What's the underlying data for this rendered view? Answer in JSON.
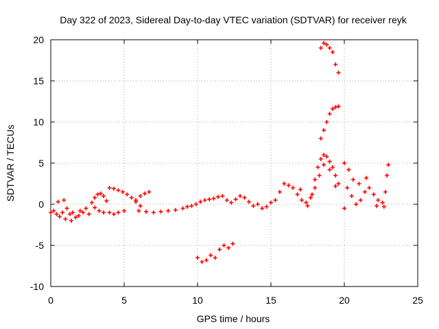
{
  "chart_data": {
    "type": "scatter",
    "title": "Day 322 of 2023, Sidereal Day-to-day VTEC variation (SDTVAR) for receiver reyk",
    "xlabel": "GPS time / hours",
    "ylabel": "SDTVAR / TECUs",
    "xlim": [
      0,
      25
    ],
    "ylim": [
      -10,
      20
    ],
    "xticks": [
      0,
      5,
      10,
      15,
      20,
      25
    ],
    "xtick_labels": [
      "0",
      "5",
      "10",
      "15",
      "20",
      "25"
    ],
    "yticks": [
      -10,
      -5,
      0,
      5,
      10,
      15,
      20
    ],
    "ytick_labels": [
      "-10",
      "-5",
      "0",
      "5",
      "10",
      "15",
      "20"
    ],
    "grid": true,
    "marker": "+",
    "series": [
      {
        "name": "SDTVAR",
        "color": "#ff0000",
        "points": [
          [
            0.0,
            -1.0
          ],
          [
            0.2,
            -0.8
          ],
          [
            0.4,
            -1.2
          ],
          [
            0.5,
            0.3
          ],
          [
            0.6,
            -1.5
          ],
          [
            0.8,
            -1.0
          ],
          [
            0.9,
            0.5
          ],
          [
            1.0,
            -1.8
          ],
          [
            1.1,
            -0.5
          ],
          [
            1.3,
            -1.2
          ],
          [
            1.4,
            -2.0
          ],
          [
            1.5,
            -1.0
          ],
          [
            1.7,
            -1.6
          ],
          [
            1.9,
            -1.4
          ],
          [
            2.0,
            -0.8
          ],
          [
            2.2,
            -1.0
          ],
          [
            2.4,
            -0.5
          ],
          [
            2.6,
            -1.2
          ],
          [
            2.8,
            0.2
          ],
          [
            3.0,
            0.8
          ],
          [
            3.2,
            1.2
          ],
          [
            3.4,
            1.3
          ],
          [
            3.6,
            1.0
          ],
          [
            3.8,
            0.4
          ],
          [
            3.0,
            -0.4
          ],
          [
            3.3,
            -0.8
          ],
          [
            3.6,
            -1.0
          ],
          [
            4.0,
            -1.0
          ],
          [
            4.3,
            -1.2
          ],
          [
            4.6,
            -1.0
          ],
          [
            5.0,
            -0.8
          ],
          [
            4.0,
            2.0
          ],
          [
            4.3,
            1.9
          ],
          [
            4.6,
            1.7
          ],
          [
            4.9,
            1.5
          ],
          [
            5.2,
            1.2
          ],
          [
            5.5,
            0.8
          ],
          [
            5.8,
            0.3
          ],
          [
            6.1,
            -0.2
          ],
          [
            5.8,
            0.5
          ],
          [
            6.1,
            1.0
          ],
          [
            6.4,
            1.3
          ],
          [
            6.7,
            1.5
          ],
          [
            6.0,
            -0.8
          ],
          [
            6.5,
            -0.9
          ],
          [
            7.0,
            -1.0
          ],
          [
            7.5,
            -0.9
          ],
          [
            8.0,
            -0.8
          ],
          [
            8.5,
            -0.7
          ],
          [
            9.0,
            -0.5
          ],
          [
            9.3,
            -0.3
          ],
          [
            9.6,
            -0.2
          ],
          [
            9.9,
            0.0
          ],
          [
            10.2,
            0.3
          ],
          [
            10.5,
            0.5
          ],
          [
            10.8,
            0.6
          ],
          [
            11.1,
            0.7
          ],
          [
            11.4,
            0.9
          ],
          [
            11.7,
            1.0
          ],
          [
            12.0,
            0.5
          ],
          [
            12.3,
            0.2
          ],
          [
            12.6,
            0.6
          ],
          [
            12.9,
            1.0
          ],
          [
            13.2,
            0.8
          ],
          [
            13.5,
            0.3
          ],
          [
            13.8,
            -0.2
          ],
          [
            14.1,
            0.0
          ],
          [
            14.4,
            -0.5
          ],
          [
            14.7,
            -0.3
          ],
          [
            15.0,
            0.2
          ],
          [
            15.3,
            0.5
          ],
          [
            15.6,
            1.5
          ],
          [
            15.9,
            2.5
          ],
          [
            16.2,
            2.3
          ],
          [
            16.5,
            2.0
          ],
          [
            16.8,
            1.2
          ],
          [
            17.1,
            0.5
          ],
          [
            17.4,
            0.2
          ],
          [
            17.7,
            0.8
          ],
          [
            17.5,
            -0.2
          ],
          [
            17.0,
            1.8
          ],
          [
            18.0,
            3.0
          ],
          [
            18.2,
            4.5
          ],
          [
            18.4,
            5.5
          ],
          [
            18.6,
            6.0
          ],
          [
            18.8,
            5.8
          ],
          [
            19.0,
            5.2
          ],
          [
            19.2,
            4.5
          ],
          [
            19.4,
            3.5
          ],
          [
            19.6,
            2.5
          ],
          [
            18.3,
            3.5
          ],
          [
            18.6,
            4.8
          ],
          [
            19.0,
            4.2
          ],
          [
            19.4,
            2.2
          ],
          [
            17.8,
            1.2
          ],
          [
            18.0,
            2.0
          ],
          [
            10.0,
            -6.5
          ],
          [
            10.3,
            -7.0
          ],
          [
            10.6,
            -6.8
          ],
          [
            10.9,
            -6.2
          ],
          [
            11.2,
            -6.5
          ],
          [
            11.5,
            -5.5
          ],
          [
            11.8,
            -5.0
          ],
          [
            12.1,
            -5.3
          ],
          [
            12.4,
            -4.8
          ],
          [
            18.4,
            19.0
          ],
          [
            18.6,
            19.6
          ],
          [
            18.8,
            19.4
          ],
          [
            19.0,
            19.0
          ],
          [
            19.2,
            18.5
          ],
          [
            19.4,
            17.0
          ],
          [
            19.6,
            16.0
          ],
          [
            18.4,
            8.0
          ],
          [
            18.6,
            9.0
          ],
          [
            18.8,
            10.0
          ],
          [
            19.0,
            11.0
          ],
          [
            19.2,
            11.6
          ],
          [
            19.4,
            11.8
          ],
          [
            19.6,
            11.9
          ],
          [
            20.0,
            5.0
          ],
          [
            20.3,
            4.2
          ],
          [
            20.6,
            3.0
          ],
          [
            20.2,
            2.0
          ],
          [
            20.5,
            1.0
          ],
          [
            20.8,
            0.0
          ],
          [
            21.1,
            0.5
          ],
          [
            21.4,
            1.5
          ],
          [
            21.7,
            2.0
          ],
          [
            22.0,
            1.2
          ],
          [
            22.3,
            0.5
          ],
          [
            22.6,
            0.2
          ],
          [
            22.8,
            1.5
          ],
          [
            22.9,
            3.5
          ],
          [
            23.0,
            4.8
          ],
          [
            20.0,
            -0.5
          ],
          [
            21.0,
            2.5
          ],
          [
            21.5,
            3.2
          ],
          [
            22.2,
            -0.2
          ],
          [
            22.7,
            -0.3
          ]
        ]
      }
    ]
  }
}
